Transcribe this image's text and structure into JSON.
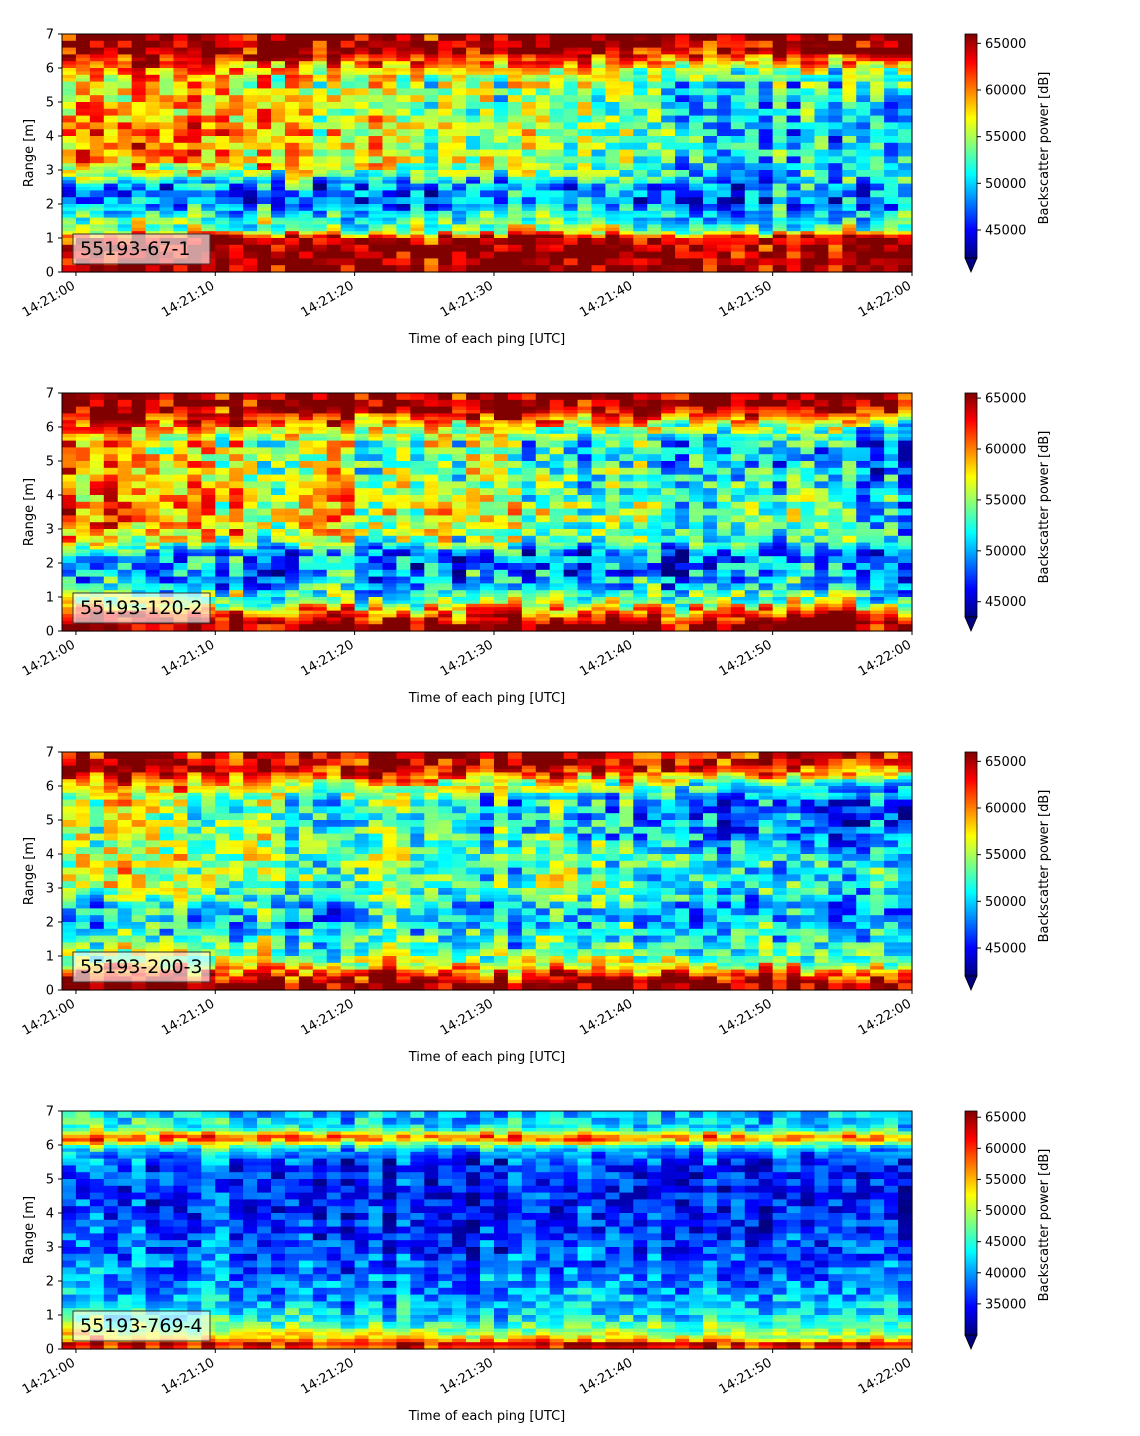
{
  "colormap": "jet",
  "chart_data": [
    {
      "type": "heatmap",
      "label": "55193-67-1",
      "xlabel": "Time of each ping [UTC]",
      "ylabel": "Range [m]",
      "xlim": [
        "14:20:59",
        "14:22:00"
      ],
      "ylim": [
        0,
        7
      ],
      "x_ticks": [
        "14:21:00",
        "14:21:10",
        "14:21:20",
        "14:21:30",
        "14:21:40",
        "14:21:50",
        "14:22:00"
      ],
      "y_ticks": [
        0,
        1,
        2,
        3,
        4,
        5,
        6,
        7
      ],
      "colorbar_label": "Backscatter power [dB]",
      "colorbar_range": [
        42000,
        66000
      ],
      "colorbar_ticks": [
        45000,
        50000,
        55000,
        60000,
        65000
      ],
      "colorbar_extend": "min",
      "profile": {
        "range_m": [
          0,
          0.2,
          0.6,
          1.0,
          1.2,
          1.6,
          2.0,
          2.5,
          2.8,
          3.2,
          4.0,
          5.0,
          5.6,
          6.0,
          6.5,
          7.0
        ],
        "power_start": [
          66000,
          66000,
          66000,
          64500,
          55000,
          52000,
          47500,
          48000,
          54000,
          60000,
          61000,
          59000,
          58000,
          61000,
          66000,
          66000
        ],
        "power_end": [
          66000,
          66000,
          66000,
          64500,
          54000,
          50000,
          47500,
          48000,
          49500,
          49000,
          49000,
          48500,
          50500,
          54000,
          64000,
          66000
        ]
      }
    },
    {
      "type": "heatmap",
      "label": "55193-120-2",
      "xlabel": "Time of each ping [UTC]",
      "ylabel": "Range [m]",
      "xlim": [
        "14:20:59",
        "14:22:00"
      ],
      "ylim": [
        0,
        7
      ],
      "x_ticks": [
        "14:21:00",
        "14:21:10",
        "14:21:20",
        "14:21:30",
        "14:21:40",
        "14:21:50",
        "14:22:00"
      ],
      "y_ticks": [
        0,
        1,
        2,
        3,
        4,
        5,
        6,
        7
      ],
      "colorbar_label": "Backscatter power [dB]",
      "colorbar_range": [
        43500,
        65500
      ],
      "colorbar_ticks": [
        45000,
        50000,
        55000,
        60000,
        65000
      ],
      "colorbar_extend": "min",
      "profile": {
        "range_m": [
          0,
          0.2,
          0.5,
          0.8,
          1.2,
          1.8,
          2.3,
          2.6,
          3.2,
          4.0,
          5.0,
          5.6,
          6.0,
          6.5,
          7.0
        ],
        "power_start": [
          65500,
          65500,
          62000,
          56000,
          52000,
          49000,
          49500,
          56000,
          60000,
          59000,
          58000,
          58000,
          61000,
          65500,
          65500
        ],
        "power_end": [
          65500,
          65500,
          60000,
          55000,
          51000,
          48500,
          48500,
          51000,
          52000,
          51000,
          48500,
          49000,
          53000,
          64000,
          65500
        ]
      }
    },
    {
      "type": "heatmap",
      "label": "55193-200-3",
      "xlabel": "Time of each ping [UTC]",
      "ylabel": "Range [m]",
      "xlim": [
        "14:20:59",
        "14:22:00"
      ],
      "ylim": [
        0,
        7
      ],
      "x_ticks": [
        "14:21:00",
        "14:21:10",
        "14:21:20",
        "14:21:30",
        "14:21:40",
        "14:21:50",
        "14:22:00"
      ],
      "y_ticks": [
        0,
        1,
        2,
        3,
        4,
        5,
        6,
        7
      ],
      "colorbar_label": "Backscatter power [dB]",
      "colorbar_range": [
        42000,
        66000
      ],
      "colorbar_ticks": [
        45000,
        50000,
        55000,
        60000,
        65000
      ],
      "colorbar_extend": "min",
      "profile": {
        "range_m": [
          0,
          0.2,
          0.5,
          0.8,
          1.3,
          2.0,
          2.5,
          3.0,
          4.0,
          5.0,
          5.6,
          6.0,
          6.5,
          7.0
        ],
        "power_start": [
          66000,
          66000,
          62000,
          56000,
          53000,
          50000,
          51000,
          55000,
          56000,
          55000,
          56000,
          60000,
          66000,
          64000
        ],
        "power_end": [
          66000,
          66000,
          60000,
          55000,
          52000,
          50000,
          49500,
          51000,
          50000,
          46000,
          46500,
          50000,
          62000,
          64000
        ]
      }
    },
    {
      "type": "heatmap",
      "label": "55193-769-4",
      "xlabel": "Time of each ping [UTC]",
      "ylabel": "Range [m]",
      "xlim": [
        "14:20:59",
        "14:22:00"
      ],
      "ylim": [
        0,
        7
      ],
      "x_ticks": [
        "14:21:00",
        "14:21:10",
        "14:21:20",
        "14:21:30",
        "14:21:40",
        "14:21:50",
        "14:22:00"
      ],
      "y_ticks": [
        0,
        1,
        2,
        3,
        4,
        5,
        6,
        7
      ],
      "colorbar_label": "Backscatter power [dB]",
      "colorbar_range": [
        30000,
        66000
      ],
      "colorbar_ticks": [
        35000,
        40000,
        45000,
        50000,
        55000,
        60000,
        65000
      ],
      "colorbar_extend": "min",
      "profile": {
        "range_m": [
          0,
          0.15,
          0.3,
          0.6,
          1.0,
          1.5,
          2.5,
          3.5,
          4.5,
          5.5,
          5.9,
          6.2,
          6.5,
          7.0
        ],
        "power_start": [
          58000,
          62000,
          55000,
          48000,
          44000,
          41000,
          38000,
          36500,
          35500,
          37000,
          43000,
          60000,
          45000,
          42000
        ],
        "power_end": [
          58000,
          62000,
          52000,
          46000,
          42000,
          40000,
          37000,
          35500,
          34500,
          35000,
          40000,
          58000,
          42000,
          40000
        ]
      }
    }
  ]
}
